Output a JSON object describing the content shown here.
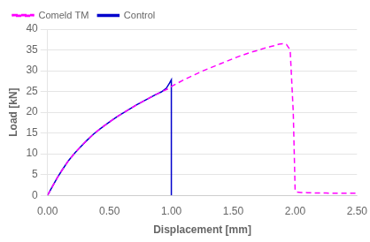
{
  "chart_data": {
    "type": "line",
    "xlabel": "Displacement [mm]",
    "ylabel": "Load [kN]",
    "xlim": [
      0.0,
      2.5
    ],
    "ylim": [
      0,
      40
    ],
    "xticks": [
      {
        "value": 0.0,
        "label": "0.00"
      },
      {
        "value": 0.5,
        "label": "0.50"
      },
      {
        "value": 1.0,
        "label": "1.00"
      },
      {
        "value": 1.5,
        "label": "1.50"
      },
      {
        "value": 2.0,
        "label": "2.00"
      },
      {
        "value": 2.5,
        "label": "2.50"
      }
    ],
    "yticks": [
      0,
      5,
      10,
      15,
      20,
      25,
      30,
      35,
      40
    ],
    "grid": "y",
    "legend": "upper left",
    "series": [
      {
        "name": "Comeld TM",
        "color": "#FF00FF",
        "line_style": "dashed",
        "x": [
          0.0,
          0.04,
          0.08,
          0.12,
          0.17,
          0.22,
          0.27,
          0.32,
          0.37,
          0.42,
          0.47,
          0.52,
          0.57,
          0.62,
          0.67,
          0.72,
          0.77,
          0.82,
          0.87,
          0.92,
          0.97,
          1.0,
          1.05,
          1.1,
          1.15,
          1.2,
          1.25,
          1.3,
          1.35,
          1.4,
          1.45,
          1.5,
          1.55,
          1.6,
          1.65,
          1.7,
          1.75,
          1.8,
          1.84,
          1.87,
          1.9,
          1.93,
          1.96,
          1.985,
          1.997,
          2.0,
          2.003,
          2.01,
          2.05,
          2.1,
          2.15,
          2.2,
          2.25,
          2.3,
          2.35,
          2.4,
          2.45,
          2.5
        ],
        "values": [
          0.0,
          2.2,
          4.3,
          6.2,
          8.4,
          10.2,
          11.8,
          13.3,
          14.7,
          15.9,
          17.0,
          18.1,
          19.1,
          20.0,
          20.9,
          21.8,
          22.6,
          23.4,
          24.2,
          24.9,
          25.6,
          26.2,
          27.0,
          27.8,
          28.5,
          29.2,
          29.9,
          30.5,
          31.1,
          31.7,
          32.3,
          32.9,
          33.5,
          34.0,
          34.5,
          34.9,
          35.4,
          35.8,
          36.1,
          36.4,
          36.5,
          36.3,
          35.0,
          20.0,
          5.0,
          1.2,
          1.0,
          0.8,
          0.7,
          0.65,
          0.6,
          0.55,
          0.55,
          0.5,
          0.5,
          0.5,
          0.5,
          0.5
        ]
      },
      {
        "name": "Control",
        "color": "#0000CC",
        "line_style": "solid",
        "x": [
          0.0,
          0.04,
          0.08,
          0.12,
          0.17,
          0.22,
          0.27,
          0.32,
          0.37,
          0.42,
          0.47,
          0.52,
          0.57,
          0.62,
          0.67,
          0.72,
          0.77,
          0.82,
          0.87,
          0.92,
          0.96,
          0.985,
          1.0,
          1.0,
          1.0
        ],
        "values": [
          0.0,
          2.2,
          4.3,
          6.2,
          8.4,
          10.2,
          11.8,
          13.3,
          14.7,
          15.9,
          17.0,
          18.1,
          19.1,
          20.0,
          20.9,
          21.8,
          22.6,
          23.4,
          24.2,
          24.9,
          25.8,
          27.0,
          27.8,
          0.2,
          0.0
        ]
      }
    ]
  }
}
